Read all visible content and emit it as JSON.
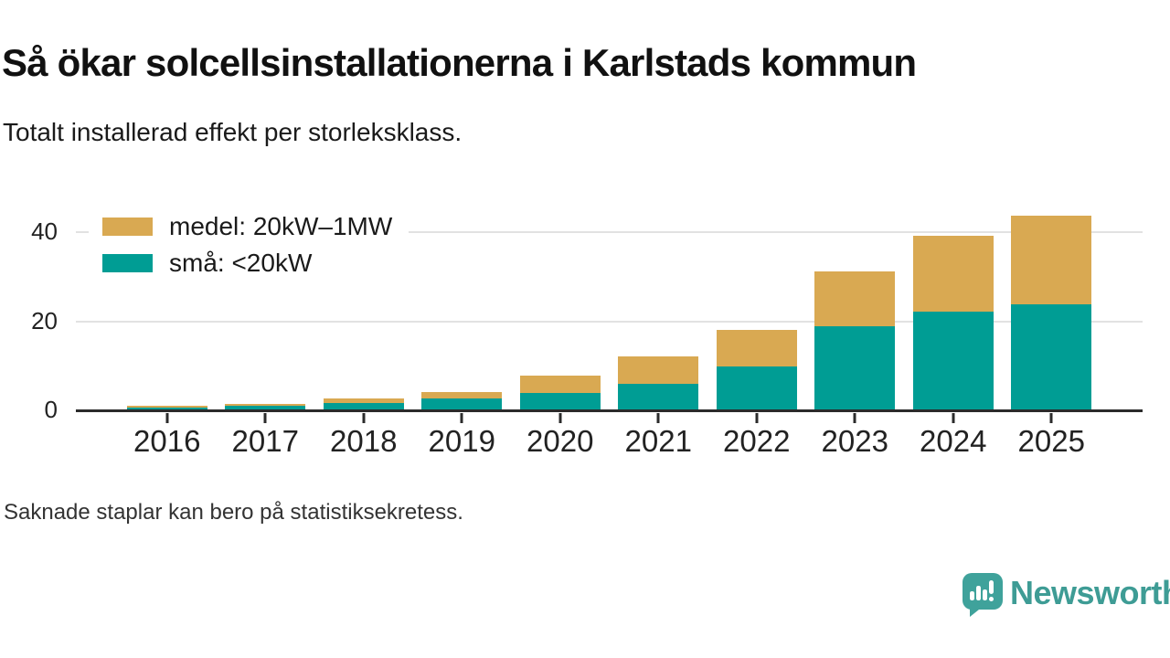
{
  "header": {
    "title": "Så ökar solcellsinstallationerna i Karlstads kommun",
    "subtitle": "Totalt installerad effekt per storleksklass."
  },
  "chart_data": {
    "type": "bar",
    "stacked": true,
    "title": "Så ökar solcellsinstallationerna i Karlstads kommun",
    "subtitle": "Totalt installerad effekt per storleksklass.",
    "categories": [
      "2016",
      "2017",
      "2018",
      "2019",
      "2020",
      "2021",
      "2022",
      "2023",
      "2024",
      "2025"
    ],
    "series": [
      {
        "name": "medel: 20kW–1MW",
        "color": "#D9A952",
        "values": [
          0.5,
          0.5,
          1.0,
          1.5,
          3.8,
          6.2,
          8.1,
          12.4,
          17.0,
          19.9
        ]
      },
      {
        "name": "små: <20kW",
        "color": "#009D94",
        "values": [
          0.4,
          0.8,
          1.4,
          2.5,
          3.7,
          5.8,
          9.7,
          18.6,
          22.0,
          23.5
        ]
      }
    ],
    "stack_order_bottom_to_top": [
      "små: <20kW",
      "medel: 20kW–1MW"
    ],
    "totals": [
      0.9,
      1.3,
      2.4,
      4.0,
      7.5,
      12.0,
      17.8,
      31.0,
      39.0,
      43.4
    ],
    "yticks": [
      0,
      20,
      40
    ],
    "ylim": [
      0,
      45
    ],
    "xlabel": "",
    "ylabel": "",
    "grid": "horizontal",
    "legend_position": "top-left",
    "axis_color": "#2b2b2b",
    "gridline_color": "#e2e2e2"
  },
  "footer": {
    "note": "Saknade staplar kan bero på statistiksekretess."
  },
  "branding": {
    "name": "Newsworthy",
    "icon": "speech-bubble-bar-chart-icon",
    "icon_color": "#3FA29B",
    "text_color": "#3E9C95"
  }
}
